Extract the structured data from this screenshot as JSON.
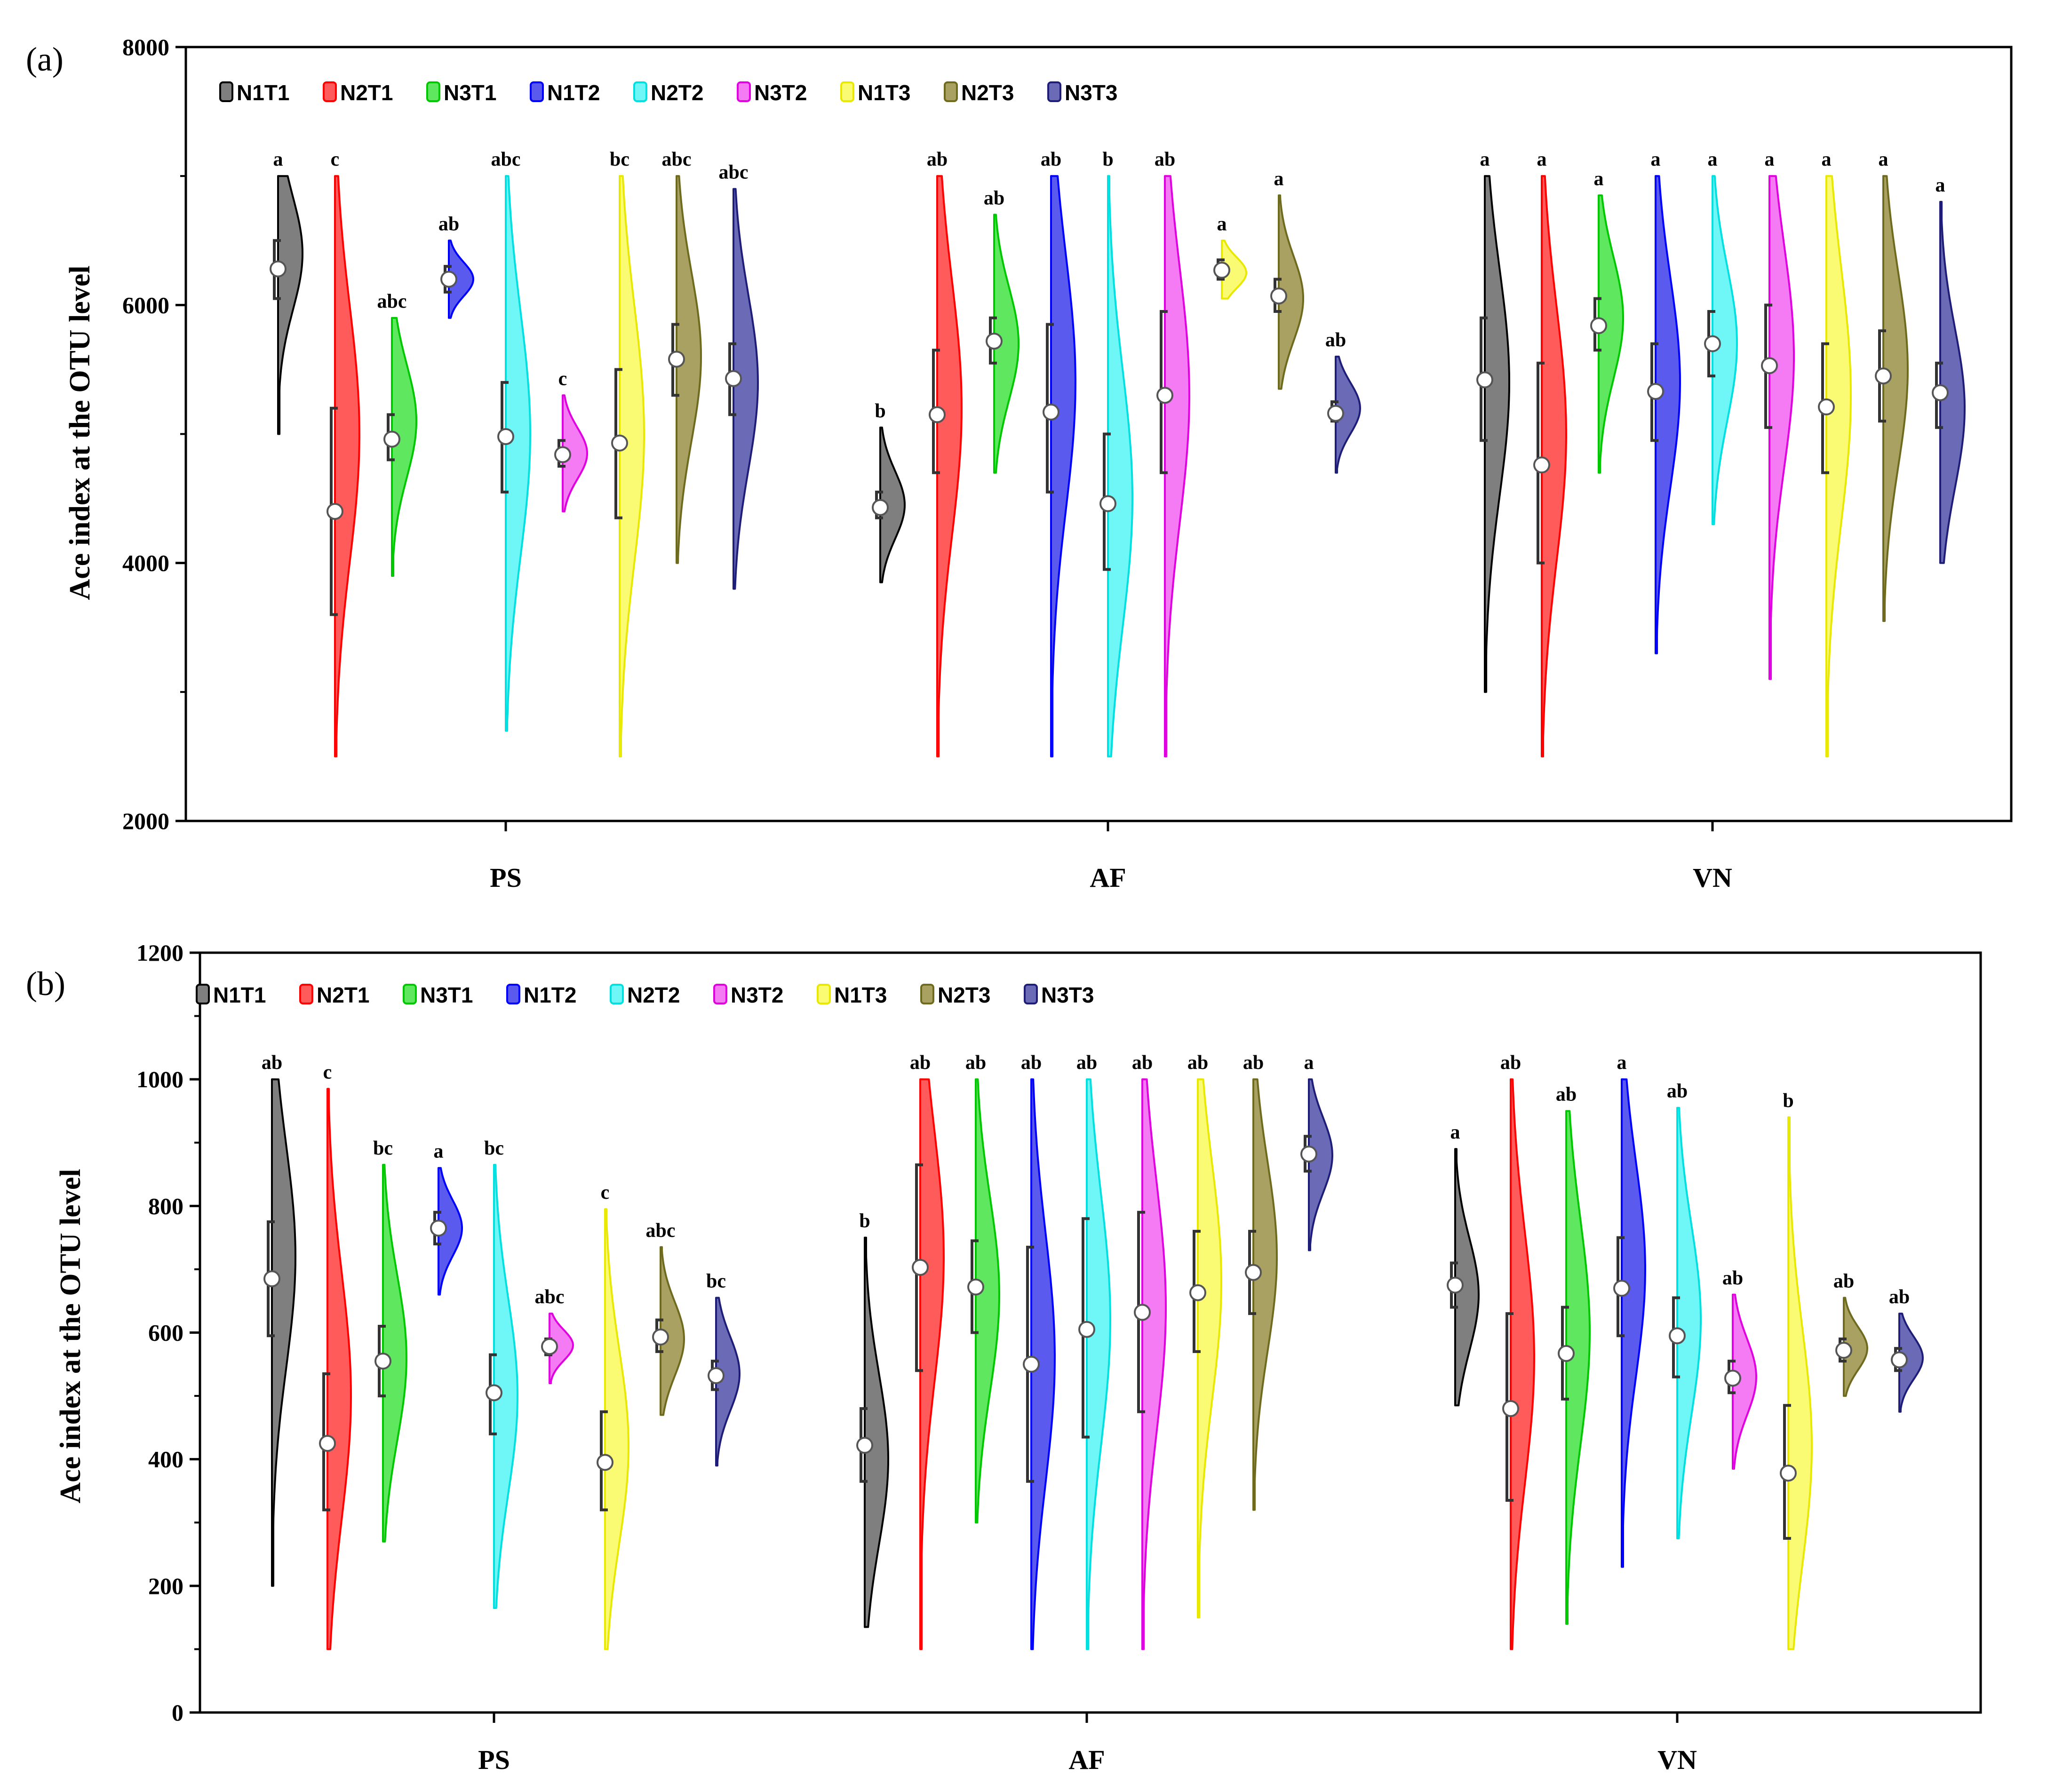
{
  "chart_data": [
    {
      "type": "violin",
      "panel_label": "(a)",
      "ylabel": "Ace index at the OTU level",
      "ylim": [
        2000,
        8000
      ],
      "yticks": [
        2000,
        4000,
        6000,
        8000
      ],
      "minor_step": 1000,
      "groups": [
        "PS",
        "AF",
        "VN"
      ],
      "legend": [
        "N1T1",
        "N2T1",
        "N3T1",
        "N1T2",
        "N2T2",
        "N3T2",
        "N1T3",
        "N2T3",
        "N3T3"
      ],
      "colors": [
        "#7f7f7f",
        "#ff5b5b",
        "#5fe85f",
        "#5a5aee",
        "#6ff6f6",
        "#f57bf5",
        "#fbfb73",
        "#a9a162",
        "#6a6ab6"
      ],
      "edge_colors": [
        "#000000",
        "#ff0000",
        "#00c800",
        "#0000ff",
        "#00e0e0",
        "#e000e0",
        "#e8e800",
        "#6e6a1e",
        "#1e1e78"
      ],
      "series": [
        {
          "group": "PS",
          "violins": [
            {
              "name": "N1T1",
              "min": 5000,
              "max": 7000,
              "peak": 6400,
              "mean": 6280,
              "q1": 6050,
              "q3": 6500,
              "sig": "a"
            },
            {
              "name": "N2T1",
              "min": 2500,
              "max": 7000,
              "peak": 5000,
              "mean": 4400,
              "q1": 3600,
              "q3": 5200,
              "sig": "c"
            },
            {
              "name": "N3T1",
              "min": 3900,
              "max": 5900,
              "peak": 5100,
              "mean": 4960,
              "q1": 4800,
              "q3": 5150,
              "sig": "abc"
            },
            {
              "name": "N1T2",
              "min": 5900,
              "max": 6500,
              "peak": 6200,
              "mean": 6200,
              "q1": 6100,
              "q3": 6300,
              "sig": "ab"
            },
            {
              "name": "N2T2",
              "min": 2700,
              "max": 7000,
              "peak": 5000,
              "mean": 4980,
              "q1": 4550,
              "q3": 5400,
              "sig": "abc"
            },
            {
              "name": "N3T2",
              "min": 4400,
              "max": 5300,
              "peak": 4850,
              "mean": 4840,
              "q1": 4750,
              "q3": 4950,
              "sig": "c"
            },
            {
              "name": "N1T3",
              "min": 2500,
              "max": 7000,
              "peak": 5000,
              "mean": 4930,
              "q1": 4350,
              "q3": 5500,
              "sig": "bc"
            },
            {
              "name": "N2T3",
              "min": 4000,
              "max": 7000,
              "peak": 5600,
              "mean": 5580,
              "q1": 5300,
              "q3": 5850,
              "sig": "abc"
            },
            {
              "name": "N3T3",
              "min": 3800,
              "max": 6900,
              "peak": 5400,
              "mean": 5430,
              "q1": 5150,
              "q3": 5700,
              "sig": "abc"
            }
          ]
        },
        {
          "group": "AF",
          "violins": [
            {
              "name": "N1T1",
              "min": 3850,
              "max": 5050,
              "peak": 4450,
              "mean": 4430,
              "q1": 4350,
              "q3": 4550,
              "sig": "b"
            },
            {
              "name": "N2T1",
              "min": 2500,
              "max": 7000,
              "peak": 5200,
              "mean": 5150,
              "q1": 4700,
              "q3": 5650,
              "sig": "ab"
            },
            {
              "name": "N3T1",
              "min": 4700,
              "max": 6700,
              "peak": 5700,
              "mean": 5720,
              "q1": 5550,
              "q3": 5900,
              "sig": "ab"
            },
            {
              "name": "N1T2",
              "min": 2500,
              "max": 7000,
              "peak": 5400,
              "mean": 5170,
              "q1": 4550,
              "q3": 5850,
              "sig": "ab"
            },
            {
              "name": "N2T2",
              "min": 2500,
              "max": 7000,
              "peak": 4500,
              "mean": 4460,
              "q1": 3950,
              "q3": 5000,
              "sig": "b"
            },
            {
              "name": "N3T2",
              "min": 2500,
              "max": 7000,
              "peak": 5300,
              "mean": 5300,
              "q1": 4700,
              "q3": 5950,
              "sig": "ab"
            },
            {
              "name": "N1T3",
              "min": 6050,
              "max": 6500,
              "peak": 6250,
              "mean": 6270,
              "q1": 6200,
              "q3": 6350,
              "sig": "a"
            },
            {
              "name": "N2T3",
              "min": 5350,
              "max": 6850,
              "peak": 6050,
              "mean": 6070,
              "q1": 5950,
              "q3": 6200,
              "sig": "a"
            },
            {
              "name": "N3T3",
              "min": 4700,
              "max": 5600,
              "peak": 5200,
              "mean": 5160,
              "q1": 5100,
              "q3": 5250,
              "sig": "ab"
            }
          ]
        },
        {
          "group": "VN",
          "violins": [
            {
              "name": "N1T1",
              "min": 3000,
              "max": 7000,
              "peak": 5400,
              "mean": 5420,
              "q1": 4950,
              "q3": 5900,
              "sig": "a"
            },
            {
              "name": "N2T1",
              "min": 2500,
              "max": 7000,
              "peak": 5000,
              "mean": 4760,
              "q1": 4000,
              "q3": 5550,
              "sig": "a"
            },
            {
              "name": "N3T1",
              "min": 4700,
              "max": 6850,
              "peak": 5900,
              "mean": 5840,
              "q1": 5650,
              "q3": 6050,
              "sig": "a"
            },
            {
              "name": "N1T2",
              "min": 3300,
              "max": 7000,
              "peak": 5400,
              "mean": 5330,
              "q1": 4950,
              "q3": 5700,
              "sig": "a"
            },
            {
              "name": "N2T2",
              "min": 4300,
              "max": 7000,
              "peak": 5700,
              "mean": 5700,
              "q1": 5450,
              "q3": 5950,
              "sig": "a"
            },
            {
              "name": "N3T2",
              "min": 3100,
              "max": 7000,
              "peak": 5600,
              "mean": 5530,
              "q1": 5050,
              "q3": 6000,
              "sig": "a"
            },
            {
              "name": "N1T3",
              "min": 2500,
              "max": 7000,
              "peak": 5300,
              "mean": 5210,
              "q1": 4700,
              "q3": 5700,
              "sig": "a"
            },
            {
              "name": "N2T3",
              "min": 3550,
              "max": 7000,
              "peak": 5500,
              "mean": 5450,
              "q1": 5100,
              "q3": 5800,
              "sig": "a"
            },
            {
              "name": "N3T3",
              "min": 4000,
              "max": 6800,
              "peak": 5200,
              "mean": 5320,
              "q1": 5050,
              "q3": 5550,
              "sig": "a"
            }
          ]
        }
      ]
    },
    {
      "type": "violin",
      "panel_label": "(b)",
      "ylabel": "Ace index at the OTU level",
      "ylim": [
        0,
        1200
      ],
      "yticks": [
        0,
        200,
        400,
        600,
        800,
        1000,
        1200
      ],
      "minor_step": 100,
      "groups": [
        "PS",
        "AF",
        "VN"
      ],
      "legend": [
        "N1T1",
        "N2T1",
        "N3T1",
        "N1T2",
        "N2T2",
        "N3T2",
        "N1T3",
        "N2T3",
        "N3T3"
      ],
      "colors": [
        "#7f7f7f",
        "#ff5b5b",
        "#5fe85f",
        "#5a5aee",
        "#6ff6f6",
        "#f57bf5",
        "#fbfb73",
        "#a9a162",
        "#6a6ab6"
      ],
      "edge_colors": [
        "#000000",
        "#ff0000",
        "#00c800",
        "#0000ff",
        "#00e0e0",
        "#e000e0",
        "#e8e800",
        "#6e6a1e",
        "#1e1e78"
      ],
      "series": [
        {
          "group": "PS",
          "violins": [
            {
              "name": "N1T1",
              "min": 200,
              "max": 1000,
              "peak": 720,
              "mean": 685,
              "q1": 595,
              "q3": 775,
              "sig": "ab"
            },
            {
              "name": "N2T1",
              "min": 100,
              "max": 985,
              "peak": 500,
              "mean": 425,
              "q1": 320,
              "q3": 535,
              "sig": "c"
            },
            {
              "name": "N3T1",
              "min": 270,
              "max": 865,
              "peak": 560,
              "mean": 555,
              "q1": 500,
              "q3": 610,
              "sig": "bc"
            },
            {
              "name": "N1T2",
              "min": 660,
              "max": 860,
              "peak": 765,
              "mean": 765,
              "q1": 740,
              "q3": 790,
              "sig": "a"
            },
            {
              "name": "N2T2",
              "min": 165,
              "max": 865,
              "peak": 500,
              "mean": 505,
              "q1": 440,
              "q3": 565,
              "sig": "bc"
            },
            {
              "name": "N3T2",
              "min": 520,
              "max": 630,
              "peak": 580,
              "mean": 578,
              "q1": 565,
              "q3": 590,
              "sig": "abc"
            },
            {
              "name": "N1T3",
              "min": 100,
              "max": 795,
              "peak": 420,
              "mean": 395,
              "q1": 320,
              "q3": 475,
              "sig": "c"
            },
            {
              "name": "N2T3",
              "min": 470,
              "max": 735,
              "peak": 590,
              "mean": 593,
              "q1": 570,
              "q3": 620,
              "sig": "abc"
            },
            {
              "name": "N3T3",
              "min": 390,
              "max": 655,
              "peak": 535,
              "mean": 532,
              "q1": 510,
              "q3": 555,
              "sig": "bc"
            }
          ]
        },
        {
          "group": "AF",
          "violins": [
            {
              "name": "N1T1",
              "min": 135,
              "max": 750,
              "peak": 400,
              "mean": 422,
              "q1": 365,
              "q3": 480,
              "sig": "b"
            },
            {
              "name": "N2T1",
              "min": 100,
              "max": 1000,
              "peak": 720,
              "mean": 703,
              "q1": 540,
              "q3": 865,
              "sig": "ab"
            },
            {
              "name": "N3T1",
              "min": 300,
              "max": 1000,
              "peak": 660,
              "mean": 672,
              "q1": 600,
              "q3": 745,
              "sig": "ab"
            },
            {
              "name": "N1T2",
              "min": 100,
              "max": 1000,
              "peak": 560,
              "mean": 550,
              "q1": 365,
              "q3": 735,
              "sig": "ab"
            },
            {
              "name": "N2T2",
              "min": 100,
              "max": 1000,
              "peak": 620,
              "mean": 605,
              "q1": 435,
              "q3": 780,
              "sig": "ab"
            },
            {
              "name": "N3T2",
              "min": 100,
              "max": 1000,
              "peak": 640,
              "mean": 632,
              "q1": 475,
              "q3": 790,
              "sig": "ab"
            },
            {
              "name": "N1T3",
              "min": 150,
              "max": 1000,
              "peak": 680,
              "mean": 663,
              "q1": 570,
              "q3": 760,
              "sig": "ab"
            },
            {
              "name": "N2T3",
              "min": 320,
              "max": 1000,
              "peak": 720,
              "mean": 695,
              "q1": 630,
              "q3": 760,
              "sig": "ab"
            },
            {
              "name": "N3T3",
              "min": 730,
              "max": 1000,
              "peak": 880,
              "mean": 882,
              "q1": 855,
              "q3": 910,
              "sig": "a"
            }
          ]
        },
        {
          "group": "VN",
          "violins": [
            {
              "name": "N1T1",
              "min": 485,
              "max": 890,
              "peak": 660,
              "mean": 675,
              "q1": 640,
              "q3": 710,
              "sig": "a"
            },
            {
              "name": "N2T1",
              "min": 100,
              "max": 1000,
              "peak": 560,
              "mean": 480,
              "q1": 335,
              "q3": 630,
              "sig": "ab"
            },
            {
              "name": "N3T1",
              "min": 140,
              "max": 950,
              "peak": 600,
              "mean": 567,
              "q1": 495,
              "q3": 640,
              "sig": "ab"
            },
            {
              "name": "N1T2",
              "min": 230,
              "max": 1000,
              "peak": 700,
              "mean": 670,
              "q1": 595,
              "q3": 750,
              "sig": "a"
            },
            {
              "name": "N2T2",
              "min": 275,
              "max": 955,
              "peak": 620,
              "mean": 595,
              "q1": 530,
              "q3": 655,
              "sig": "ab"
            },
            {
              "name": "N3T2",
              "min": 385,
              "max": 660,
              "peak": 530,
              "mean": 528,
              "q1": 505,
              "q3": 555,
              "sig": "ab"
            },
            {
              "name": "N1T3",
              "min": 100,
              "max": 940,
              "peak": 420,
              "mean": 378,
              "q1": 275,
              "q3": 485,
              "sig": "b"
            },
            {
              "name": "N2T3",
              "min": 500,
              "max": 655,
              "peak": 575,
              "mean": 572,
              "q1": 555,
              "q3": 590,
              "sig": "ab"
            },
            {
              "name": "N3T3",
              "min": 475,
              "max": 630,
              "peak": 560,
              "mean": 557,
              "q1": 540,
              "q3": 575,
              "sig": "ab"
            }
          ]
        }
      ]
    }
  ]
}
